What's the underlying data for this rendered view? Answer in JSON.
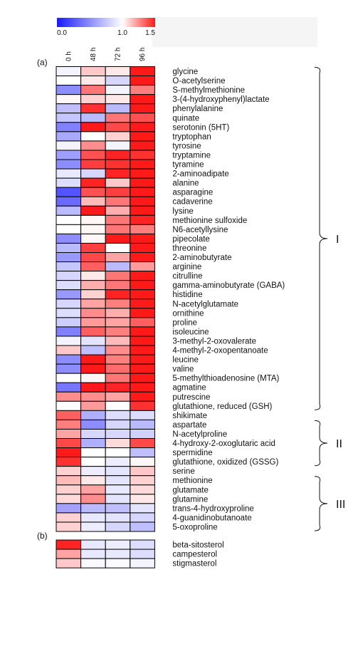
{
  "chart_data": {
    "type": "heatmap",
    "colorbar": {
      "colors": [
        "#1a1aff",
        "#ffffff",
        "#ff1a1a"
      ],
      "stops": [
        0.0,
        1.0,
        1.5
      ],
      "tick_labels": [
        "0.0",
        "1.0",
        "1.5"
      ]
    },
    "columns": [
      "0 h",
      "48 h",
      "72 h",
      "96 h"
    ],
    "panels": [
      {
        "label": "(a)",
        "rows": [
          {
            "name": "glycine",
            "values": [
              0.95,
              1.12,
              1.05,
              1.5
            ]
          },
          {
            "name": "O-acetylserine",
            "values": [
              1.0,
              1.05,
              0.82,
              1.5
            ]
          },
          {
            "name": "S-methylmethionine",
            "values": [
              0.5,
              1.3,
              0.95,
              1.28
            ]
          },
          {
            "name": "3-(4-hydroxyphenyl)lactate",
            "values": [
              1.02,
              1.1,
              1.05,
              1.5
            ]
          },
          {
            "name": "phenylalanine",
            "values": [
              0.72,
              1.45,
              0.7,
              1.5
            ]
          },
          {
            "name": "quinate",
            "values": [
              0.75,
              0.7,
              1.3,
              1.38
            ]
          },
          {
            "name": "serotonin (5HT)",
            "values": [
              0.45,
              1.5,
              1.4,
              1.5
            ]
          },
          {
            "name": "tryptophan",
            "values": [
              0.62,
              1.0,
              1.1,
              1.5
            ]
          },
          {
            "name": "tyrosine",
            "values": [
              0.95,
              1.25,
              0.95,
              1.5
            ]
          },
          {
            "name": "tryptamine",
            "values": [
              0.58,
              1.38,
              1.48,
              1.45
            ]
          },
          {
            "name": "tyramine",
            "values": [
              0.5,
              1.42,
              1.45,
              1.5
            ]
          },
          {
            "name": "2-aminoadipate",
            "values": [
              0.9,
              0.82,
              1.48,
              1.5
            ]
          },
          {
            "name": "alanine",
            "values": [
              0.85,
              1.48,
              1.12,
              1.5
            ]
          },
          {
            "name": "asparagine",
            "values": [
              0.25,
              1.38,
              1.42,
              1.5
            ]
          },
          {
            "name": "cadaverine",
            "values": [
              0.35,
              1.15,
              1.3,
              1.5
            ]
          },
          {
            "name": "lysine",
            "values": [
              0.7,
              1.5,
              1.18,
              1.5
            ]
          },
          {
            "name": "methionine sulfoxide",
            "values": [
              1.0,
              1.02,
              1.3,
              1.48
            ]
          },
          {
            "name": "N6-acetyllysine",
            "values": [
              1.0,
              1.02,
              1.3,
              1.28
            ]
          },
          {
            "name": "pipecolate",
            "values": [
              0.5,
              1.02,
              1.5,
              1.5
            ]
          },
          {
            "name": "threonine",
            "values": [
              0.7,
              1.42,
              1.0,
              1.5
            ]
          },
          {
            "name": "2-aminobutyrate",
            "values": [
              0.55,
              1.4,
              1.2,
              1.5
            ]
          },
          {
            "name": "arginine",
            "values": [
              0.75,
              1.35,
              0.7,
              1.22
            ]
          },
          {
            "name": "citrulline",
            "values": [
              0.82,
              1.05,
              1.3,
              1.5
            ]
          },
          {
            "name": "gamma-aminobutyrate (GABA)",
            "values": [
              0.85,
              1.18,
              1.3,
              1.5
            ]
          },
          {
            "name": "histidine",
            "values": [
              0.55,
              1.1,
              1.48,
              1.5
            ]
          },
          {
            "name": "N-acetylglutamate",
            "values": [
              0.82,
              1.2,
              1.28,
              1.5
            ]
          },
          {
            "name": "ornithine",
            "values": [
              0.85,
              1.25,
              1.18,
              1.5
            ]
          },
          {
            "name": "proline",
            "values": [
              0.78,
              1.22,
              1.2,
              1.35
            ]
          },
          {
            "name": "isoleucine",
            "values": [
              0.45,
              1.35,
              1.28,
              1.5
            ]
          },
          {
            "name": "3-methyl-2-oxovalerate",
            "values": [
              0.95,
              0.88,
              1.15,
              1.5
            ]
          },
          {
            "name": "4-methyl-2-oxopentanoate",
            "values": [
              1.12,
              0.72,
              1.25,
              1.5
            ]
          },
          {
            "name": "leucine",
            "values": [
              0.5,
              1.5,
              1.28,
              1.5
            ]
          },
          {
            "name": "valine",
            "values": [
              0.5,
              1.5,
              1.32,
              1.5
            ]
          },
          {
            "name": "5-methylthioadenosine (MTA)",
            "values": [
              1.0,
              1.02,
              1.3,
              1.5
            ]
          },
          {
            "name": "agmatine",
            "values": [
              0.4,
              1.5,
              1.48,
              1.5
            ]
          },
          {
            "name": "putrescine",
            "values": [
              1.25,
              1.25,
              1.2,
              1.5
            ]
          },
          {
            "name": "glutathione, reduced (GSH)",
            "values": [
              1.0,
              1.22,
              1.0,
              1.45
            ]
          },
          {
            "name": "shikimate",
            "values": [
              1.35,
              0.65,
              0.85,
              0.85
            ]
          },
          {
            "name": "aspartate",
            "values": [
              1.28,
              0.5,
              0.82,
              0.7
            ]
          },
          {
            "name": "N-acetylproline",
            "values": [
              1.2,
              0.82,
              0.82,
              0.8
            ]
          },
          {
            "name": "4-hydroxy-2-oxoglutaric acid",
            "values": [
              1.4,
              0.65,
              1.08,
              1.4
            ]
          },
          {
            "name": "spermidine",
            "values": [
              1.5,
              1.0,
              1.0,
              0.72
            ]
          },
          {
            "name": "glutathione, oxidized (GSSG)",
            "values": [
              1.45,
              1.0,
              0.92,
              1.02
            ]
          },
          {
            "name": "serine",
            "values": [
              1.1,
              0.92,
              0.88,
              1.12
            ]
          },
          {
            "name": "methionine",
            "values": [
              1.15,
              1.05,
              0.88,
              1.1
            ]
          },
          {
            "name": "glutamate",
            "values": [
              1.1,
              1.2,
              0.9,
              1.08
            ]
          },
          {
            "name": "glutamine",
            "values": [
              1.08,
              1.25,
              0.88,
              1.05
            ]
          },
          {
            "name": "trans-4-hydroxyproline",
            "values": [
              0.6,
              0.7,
              0.72,
              0.88
            ]
          },
          {
            "name": "4-guanidinobutanoate",
            "values": [
              1.1,
              0.9,
              0.88,
              0.82
            ]
          },
          {
            "name": "5-oxoproline",
            "values": [
              1.1,
              0.92,
              0.82,
              0.72
            ]
          }
        ],
        "groups": [
          {
            "label": "I",
            "from": "glycine",
            "to": "glutathione, reduced (GSH)"
          },
          {
            "label": "II",
            "from": "aspartate",
            "to": "glutathione, oxidized (GSSG)"
          },
          {
            "label": "III",
            "from": "methionine",
            "to": "5-oxoproline"
          }
        ]
      },
      {
        "label": "(b)",
        "rows": [
          {
            "name": "beta-sitosterol",
            "values": [
              1.48,
              0.9,
              0.92,
              0.85
            ]
          },
          {
            "name": "campesterol",
            "values": [
              1.2,
              0.9,
              0.9,
              0.85
            ]
          },
          {
            "name": "stigmasterol",
            "values": [
              1.12,
              0.97,
              0.98,
              0.95
            ]
          }
        ],
        "groups": []
      }
    ]
  }
}
